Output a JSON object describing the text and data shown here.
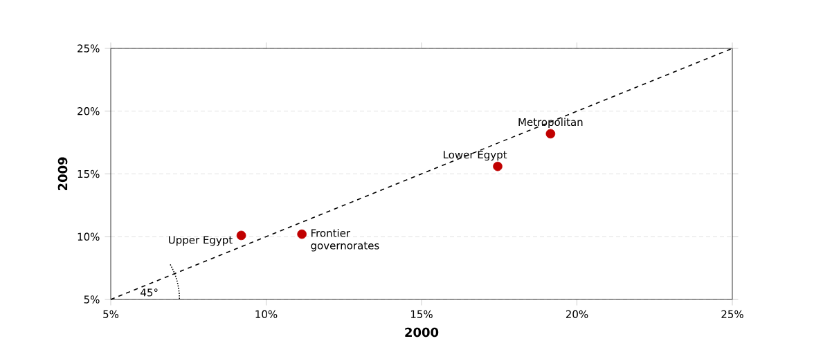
{
  "chart_data": {
    "type": "scatter",
    "xlabel": "2000",
    "ylabel": "2009",
    "series": [
      {
        "color": "#c00000",
        "marker": "circle",
        "x": [
          9.2,
          11.15,
          17.45,
          19.15
        ],
        "values": [
          10.1,
          10.2,
          15.6,
          18.2
        ]
      },
      {
        "type": "line",
        "color": "#000000",
        "line_style": "dashed",
        "marker": "none",
        "x": [
          5,
          25
        ],
        "values": [
          5,
          25
        ]
      }
    ],
    "grid": "y",
    "xlim": [
      5,
      25
    ],
    "ylim": [
      5,
      25
    ],
    "xticks": [
      {
        "value": 5,
        "label": "5%"
      },
      {
        "value": 10,
        "label": "10%"
      },
      {
        "value": 15,
        "label": "15%"
      },
      {
        "value": 20,
        "label": "20%"
      },
      {
        "value": 25,
        "label": "25%"
      }
    ],
    "yticks": [
      {
        "value": 5,
        "label": "5%"
      },
      {
        "value": 10,
        "label": "10%"
      },
      {
        "value": 15,
        "label": "15%"
      },
      {
        "value": 20,
        "label": "20%"
      },
      {
        "value": 25,
        "label": "25%"
      }
    ],
    "annotations": [
      {
        "text": "Upper Egypt",
        "x": 9.2,
        "y": 10.1
      },
      {
        "text": "Frontier governorates",
        "x": 11.15,
        "y": 10.2
      },
      {
        "text": "Lower Egypt",
        "x": 17.45,
        "y": 15.6
      },
      {
        "text": "Metropolitan",
        "x": 19.15,
        "y": 18.2
      },
      "45°"
    ]
  }
}
